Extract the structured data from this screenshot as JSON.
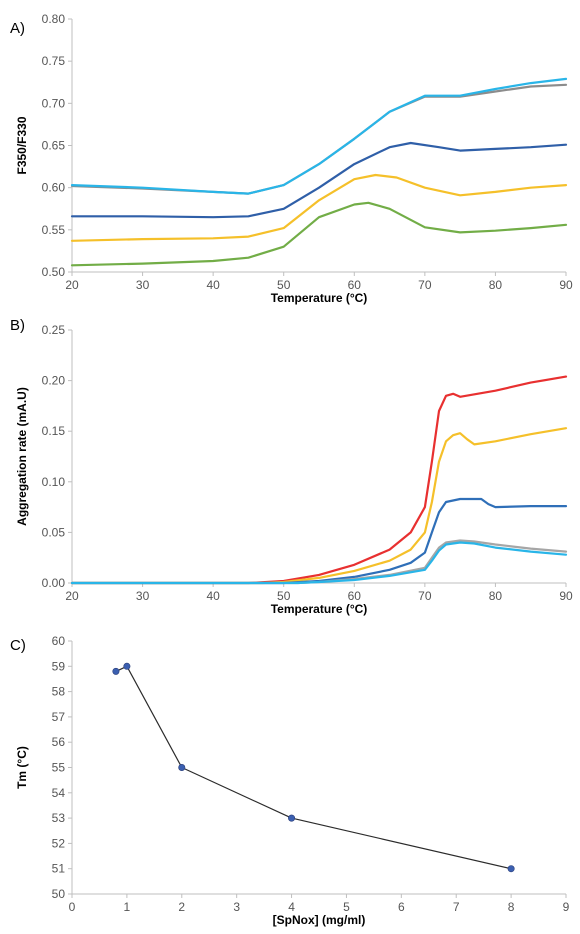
{
  "chart_data": [
    {
      "type": "line",
      "panel_label": "A)",
      "xlabel": "Temperature (°C)",
      "ylabel": "F350/F330",
      "xlim": [
        20,
        90
      ],
      "ylim": [
        0.5,
        0.8
      ],
      "xticks": [
        20,
        30,
        40,
        50,
        60,
        70,
        80,
        90
      ],
      "yticks": [
        0.5,
        0.55,
        0.6,
        0.65,
        0.7,
        0.75,
        0.8
      ],
      "ytick_decimals": 2,
      "grid": false,
      "series": [
        {
          "color": "#8c8c8c",
          "x": [
            20,
            30,
            40,
            45,
            50,
            55,
            60,
            65,
            70,
            75,
            80,
            85,
            90
          ],
          "y": [
            0.602,
            0.599,
            0.595,
            0.593,
            0.603,
            0.628,
            0.658,
            0.69,
            0.708,
            0.708,
            0.714,
            0.72,
            0.722
          ]
        },
        {
          "color": "#29b5e8",
          "x": [
            20,
            30,
            40,
            45,
            50,
            55,
            60,
            65,
            70,
            75,
            80,
            85,
            90
          ],
          "y": [
            0.603,
            0.6,
            0.595,
            0.593,
            0.603,
            0.628,
            0.658,
            0.69,
            0.709,
            0.709,
            0.717,
            0.724,
            0.729
          ]
        },
        {
          "color": "#2f5fa8",
          "x": [
            20,
            30,
            40,
            45,
            50,
            55,
            60,
            65,
            68,
            72,
            75,
            80,
            85,
            90
          ],
          "y": [
            0.566,
            0.566,
            0.565,
            0.566,
            0.575,
            0.6,
            0.628,
            0.648,
            0.653,
            0.648,
            0.644,
            0.646,
            0.648,
            0.651
          ]
        },
        {
          "color": "#f5c02a",
          "x": [
            20,
            30,
            40,
            45,
            50,
            55,
            60,
            63,
            66,
            70,
            75,
            80,
            85,
            90
          ],
          "y": [
            0.537,
            0.539,
            0.54,
            0.542,
            0.552,
            0.585,
            0.61,
            0.615,
            0.612,
            0.6,
            0.591,
            0.595,
            0.6,
            0.603
          ]
        },
        {
          "color": "#72ad47",
          "x": [
            20,
            30,
            40,
            45,
            50,
            55,
            60,
            62,
            65,
            70,
            75,
            80,
            85,
            90
          ],
          "y": [
            0.508,
            0.51,
            0.513,
            0.517,
            0.53,
            0.565,
            0.58,
            0.582,
            0.575,
            0.553,
            0.547,
            0.549,
            0.552,
            0.556
          ]
        }
      ]
    },
    {
      "type": "line",
      "panel_label": "B)",
      "xlabel": "Temperature (°C)",
      "ylabel": "Aggregation rate (mA.U)",
      "xlim": [
        20,
        90
      ],
      "ylim": [
        0,
        0.25
      ],
      "xticks": [
        20,
        30,
        40,
        50,
        60,
        70,
        80,
        90
      ],
      "yticks": [
        0,
        0.05,
        0.1,
        0.15,
        0.2,
        0.25
      ],
      "ytick_decimals": 2,
      "grid": false,
      "series": [
        {
          "color": "#e83030",
          "x": [
            20,
            45,
            50,
            55,
            60,
            65,
            68,
            70,
            71,
            72,
            73,
            74,
            75,
            80,
            85,
            90
          ],
          "y": [
            0,
            0,
            0.002,
            0.008,
            0.018,
            0.033,
            0.05,
            0.075,
            0.12,
            0.17,
            0.185,
            0.187,
            0.184,
            0.19,
            0.198,
            0.204
          ]
        },
        {
          "color": "#f5c02a",
          "x": [
            20,
            47,
            50,
            55,
            60,
            65,
            68,
            70,
            71,
            72,
            73,
            74,
            75,
            76,
            77,
            80,
            85,
            90
          ],
          "y": [
            0,
            0,
            0.001,
            0.005,
            0.012,
            0.022,
            0.033,
            0.05,
            0.08,
            0.12,
            0.14,
            0.146,
            0.148,
            0.142,
            0.137,
            0.14,
            0.147,
            0.153
          ]
        },
        {
          "color": "#2f6fb8",
          "x": [
            20,
            50,
            55,
            60,
            65,
            68,
            70,
            71,
            72,
            73,
            75,
            78,
            79,
            80,
            85,
            90
          ],
          "y": [
            0,
            0,
            0.002,
            0.006,
            0.013,
            0.02,
            0.03,
            0.05,
            0.07,
            0.08,
            0.083,
            0.083,
            0.078,
            0.075,
            0.076,
            0.076
          ]
        },
        {
          "color": "#a6a6a6",
          "x": [
            20,
            52,
            55,
            60,
            65,
            70,
            71,
            72,
            73,
            75,
            77,
            80,
            85,
            90
          ],
          "y": [
            0,
            0,
            0.001,
            0.004,
            0.008,
            0.015,
            0.025,
            0.035,
            0.04,
            0.042,
            0.041,
            0.038,
            0.034,
            0.031
          ]
        },
        {
          "color": "#29b5e8",
          "x": [
            20,
            52,
            55,
            60,
            65,
            70,
            71,
            72,
            73,
            75,
            77,
            80,
            85,
            90
          ],
          "y": [
            0,
            0,
            0.001,
            0.003,
            0.007,
            0.013,
            0.022,
            0.032,
            0.038,
            0.04,
            0.039,
            0.035,
            0.031,
            0.028
          ]
        }
      ]
    },
    {
      "type": "line",
      "panel_label": "C)",
      "xlabel": "[SpNox] (mg/ml)",
      "ylabel": "Tm (°C)",
      "xlim": [
        0,
        9
      ],
      "ylim": [
        50,
        60
      ],
      "xticks": [
        0,
        1,
        2,
        3,
        4,
        5,
        6,
        7,
        8,
        9
      ],
      "yticks": [
        50,
        51,
        52,
        53,
        54,
        55,
        56,
        57,
        58,
        59,
        60
      ],
      "ytick_decimals": 0,
      "grid": false,
      "series": [
        {
          "color": "#2b2b2b",
          "marker_color": "#3b5fb0",
          "markers": true,
          "x": [
            0.8,
            1,
            2,
            4,
            8
          ],
          "y": [
            58.8,
            59.0,
            55.0,
            53.0,
            51.0
          ]
        }
      ]
    }
  ]
}
